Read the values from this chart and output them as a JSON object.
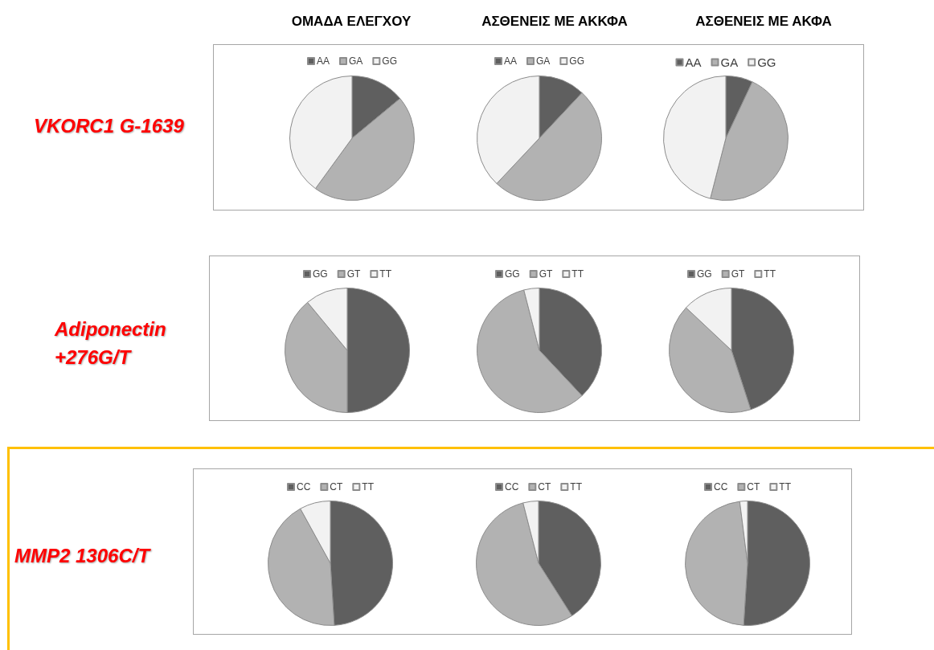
{
  "chart_data": [
    {
      "type": "pie",
      "title": "ΟΜΑΔΑ ΕΛΕΓΧΟΥ",
      "ylabel": "VKORC1 G-1639",
      "categories": [
        "AA",
        "GA",
        "GG"
      ],
      "values": [
        14,
        46,
        40
      ],
      "colors": [
        "#5f5f5f",
        "#b2b2b2",
        "#f2f2f2"
      ],
      "legend": "top"
    },
    {
      "type": "pie",
      "title": "ΑΣΘΕΝΕΙΣ ΜΕ ΑΚΚΦΑ",
      "categories": [
        "AA",
        "GA",
        "GG"
      ],
      "values": [
        12,
        50,
        38
      ],
      "colors": [
        "#5f5f5f",
        "#b2b2b2",
        "#f2f2f2"
      ],
      "legend": "top"
    },
    {
      "type": "pie",
      "title": "ΑΣΘΕΝΕΙΣ ΜΕ ΑΚΦΑ",
      "categories": [
        "AA",
        "GA",
        "GG"
      ],
      "values": [
        7,
        47,
        46
      ],
      "colors": [
        "#5f5f5f",
        "#b2b2b2",
        "#f2f2f2"
      ],
      "legend": "top"
    },
    {
      "type": "pie",
      "ylabel": "Adiponectin +276G/T",
      "categories": [
        "GG",
        "GT",
        "TT"
      ],
      "values": [
        50,
        39,
        11
      ],
      "colors": [
        "#5f5f5f",
        "#b2b2b2",
        "#f2f2f2"
      ],
      "legend": "top"
    },
    {
      "type": "pie",
      "categories": [
        "GG",
        "GT",
        "TT"
      ],
      "values": [
        38,
        58,
        4
      ],
      "colors": [
        "#5f5f5f",
        "#b2b2b2",
        "#f2f2f2"
      ],
      "legend": "top"
    },
    {
      "type": "pie",
      "categories": [
        "GG",
        "GT",
        "TT"
      ],
      "values": [
        45,
        42,
        13
      ],
      "colors": [
        "#5f5f5f",
        "#b2b2b2",
        "#f2f2f2"
      ],
      "legend": "top"
    },
    {
      "type": "pie",
      "ylabel": "MMP2 1306C/T",
      "categories": [
        "CC",
        "CT",
        "TT"
      ],
      "values": [
        49,
        43,
        8
      ],
      "colors": [
        "#5f5f5f",
        "#b2b2b2",
        "#f2f2f2"
      ],
      "legend": "top"
    },
    {
      "type": "pie",
      "categories": [
        "CC",
        "CT",
        "TT"
      ],
      "values": [
        41,
        55,
        4
      ],
      "colors": [
        "#5f5f5f",
        "#b2b2b2",
        "#f2f2f2"
      ],
      "legend": "top"
    },
    {
      "type": "pie",
      "categories": [
        "CC",
        "CT",
        "TT"
      ],
      "values": [
        51,
        47,
        2
      ],
      "colors": [
        "#5f5f5f",
        "#b2b2b2",
        "#f2f2f2"
      ],
      "legend": "top"
    }
  ]
}
